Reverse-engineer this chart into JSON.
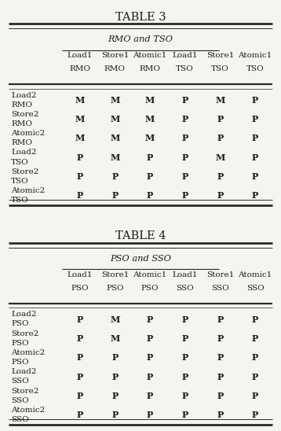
{
  "table3": {
    "title": "TABLE 3",
    "subtitle": "RMO and TSO",
    "col_headers": [
      [
        "Load1",
        "RMO"
      ],
      [
        "Store1",
        "RMO"
      ],
      [
        "Atomic1",
        "RMO"
      ],
      [
        "Load1",
        "TSO"
      ],
      [
        "Store1",
        "TSO"
      ],
      [
        "Atomic1",
        "TSO"
      ]
    ],
    "row_headers": [
      [
        "Load2",
        "RMO"
      ],
      [
        "Store2",
        "RMO"
      ],
      [
        "Atomic2",
        "RMO"
      ],
      [
        "Load2",
        "TSO"
      ],
      [
        "Store2",
        "TSO"
      ],
      [
        "Atomic2",
        "TSO"
      ]
    ],
    "data": [
      [
        "M",
        "M",
        "M",
        "P",
        "M",
        "P"
      ],
      [
        "M",
        "M",
        "M",
        "P",
        "P",
        "P"
      ],
      [
        "M",
        "M",
        "M",
        "P",
        "P",
        "P"
      ],
      [
        "P",
        "M",
        "P",
        "P",
        "M",
        "P"
      ],
      [
        "P",
        "P",
        "P",
        "P",
        "P",
        "P"
      ],
      [
        "P",
        "P",
        "P",
        "P",
        "P",
        "P"
      ]
    ]
  },
  "table4": {
    "title": "TABLE 4",
    "subtitle": "PSO and SSO",
    "col_headers": [
      [
        "Load1",
        "PSO"
      ],
      [
        "Store1",
        "PSO"
      ],
      [
        "Atomic1",
        "PSO"
      ],
      [
        "Load1",
        "SSO"
      ],
      [
        "Store1",
        "SSO"
      ],
      [
        "Atomic1",
        "SSO"
      ]
    ],
    "row_headers": [
      [
        "Load2",
        "PSO"
      ],
      [
        "Store2",
        "PSO"
      ],
      [
        "Atomic2",
        "PSO"
      ],
      [
        "Load2",
        "SSO"
      ],
      [
        "Store2",
        "SSO"
      ],
      [
        "Atomic2",
        "SSO"
      ]
    ],
    "data": [
      [
        "P",
        "M",
        "P",
        "P",
        "P",
        "P"
      ],
      [
        "P",
        "M",
        "P",
        "P",
        "P",
        "P"
      ],
      [
        "P",
        "P",
        "P",
        "P",
        "P",
        "P"
      ],
      [
        "P",
        "P",
        "P",
        "P",
        "P",
        "P"
      ],
      [
        "P",
        "P",
        "P",
        "P",
        "P",
        "P"
      ],
      [
        "P",
        "P",
        "P",
        "P",
        "P",
        "P"
      ]
    ]
  },
  "bg_color": "#f5f4ef",
  "text_color": "#1a1a1a",
  "line_color": "#2a2a2a"
}
